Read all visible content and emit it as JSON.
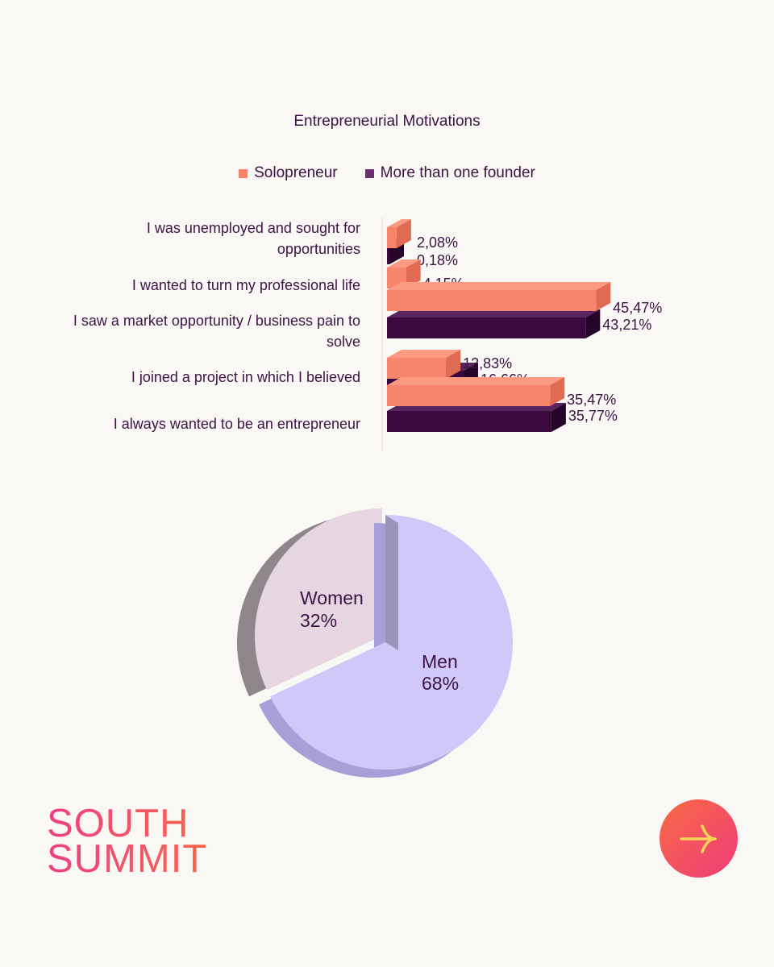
{
  "chart_data": [
    {
      "type": "bar",
      "title": "Entrepreneurial Motivations",
      "categories": [
        "I was unemployed and sought for opportunities",
        "I wanted to turn my professional life",
        "I saw a market opportunity / business pain to solve",
        "I joined a project in which I believed",
        "I always wanted to be an entrepreneur"
      ],
      "series": [
        {
          "name": "Solopreneur",
          "values": [
            2.08,
            4.15,
            45.47,
            12.83,
            35.47
          ],
          "labels": [
            "2,08%",
            "4,15%",
            "45,47%",
            "12,83%",
            "35,47%"
          ],
          "color": "#f7856c"
        },
        {
          "name": "More than one founder",
          "values": [
            0.18,
            4.18,
            43.21,
            16.66,
            35.77
          ],
          "labels": [
            "0,18%",
            "4,18%",
            "43,21%",
            "16,66%",
            "35,77%"
          ],
          "color": "#3a0a3f"
        }
      ],
      "legend_placement": "top",
      "grid": false,
      "three_d": true,
      "orientation": "horizontal"
    },
    {
      "type": "pie",
      "slices": [
        {
          "name": "Women",
          "label": "32%",
          "value": 32,
          "color": "#e5d6e1"
        },
        {
          "name": "Men",
          "label": "68%",
          "value": 68,
          "color": "#d0c8f8"
        }
      ],
      "three_d": true
    }
  ],
  "branding": {
    "logo_line1": "SOUTH",
    "logo_line2": "SUMMIT",
    "logo_gradient": [
      "#ee3f86",
      "#f7664c"
    ]
  },
  "nav": {
    "next_icon": "arrow-right-icon",
    "button_gradient": [
      "#f86a43",
      "#ef3b7c"
    ],
    "arrow_color": "#f9d45a"
  }
}
